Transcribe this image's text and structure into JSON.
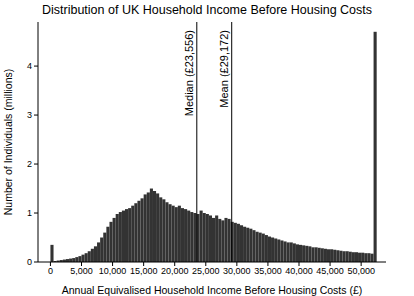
{
  "chart_data": {
    "type": "histogram",
    "title": "Distribution of UK Household Income Before Housing Costs",
    "x_label": "Annual Equivalised Household Income Before Housing Costs (£)",
    "y_label": "Number of Individuals (millions)",
    "color": "#333333",
    "grid": false,
    "xlim": [
      -2000,
      54000
    ],
    "ylim": [
      0,
      4.9
    ],
    "xticks": [
      0,
      {
        "value": 5000,
        "label": "5,000"
      },
      {
        "value": 10000,
        "label": "10,000"
      },
      {
        "value": 15000,
        "label": "15,000"
      },
      {
        "value": 20000,
        "label": "20,000"
      },
      {
        "value": 25000,
        "label": "25,000"
      },
      {
        "value": 30000,
        "label": "30,000"
      },
      {
        "value": 35000,
        "label": "35,000"
      },
      {
        "value": 40000,
        "label": "40,000"
      },
      {
        "value": 45000,
        "label": "45,000"
      },
      {
        "value": 50000,
        "label": "50,000"
      }
    ],
    "yticks": [
      0,
      1,
      2,
      3,
      4
    ],
    "bins": [
      0,
      500,
      1000,
      1500,
      2000,
      2500,
      3000,
      3500,
      4000,
      4500,
      5000,
      5500,
      6000,
      6500,
      7000,
      7500,
      8000,
      8500,
      9000,
      9500,
      10000,
      10500,
      11000,
      11500,
      12000,
      12500,
      13000,
      13500,
      14000,
      14500,
      15000,
      15500,
      16000,
      16500,
      17000,
      17500,
      18000,
      18500,
      19000,
      19500,
      20000,
      20500,
      21000,
      21500,
      22000,
      22500,
      23000,
      23500,
      24000,
      24500,
      25000,
      25500,
      26000,
      26500,
      27000,
      27500,
      28000,
      28500,
      29000,
      29500,
      30000,
      30500,
      31000,
      31500,
      32000,
      32500,
      33000,
      33500,
      34000,
      34500,
      35000,
      35500,
      36000,
      36500,
      37000,
      37500,
      38000,
      38500,
      39000,
      39500,
      40000,
      40500,
      41000,
      41500,
      42000,
      42500,
      43000,
      43500,
      44000,
      44500,
      45000,
      45500,
      46000,
      46500,
      47000,
      47500,
      48000,
      48500,
      49000,
      49500,
      50000,
      50500,
      51000,
      51500,
      52000,
      52500
    ],
    "values": [
      0.35,
      0.02,
      0.03,
      0.04,
      0.05,
      0.06,
      0.07,
      0.08,
      0.1,
      0.12,
      0.15,
      0.18,
      0.22,
      0.27,
      0.32,
      0.4,
      0.5,
      0.6,
      0.72,
      0.82,
      0.9,
      0.98,
      1.02,
      1.05,
      1.08,
      1.1,
      1.15,
      1.2,
      1.25,
      1.3,
      1.38,
      1.42,
      1.5,
      1.45,
      1.4,
      1.32,
      1.28,
      1.22,
      1.18,
      1.15,
      1.12,
      1.15,
      1.1,
      1.08,
      1.05,
      1.02,
      1.0,
      0.98,
      1.05,
      1.0,
      0.98,
      0.95,
      0.9,
      0.95,
      0.88,
      0.85,
      0.9,
      0.88,
      0.82,
      0.8,
      0.78,
      0.75,
      0.72,
      0.7,
      0.68,
      0.65,
      0.62,
      0.6,
      0.58,
      0.55,
      0.52,
      0.5,
      0.48,
      0.46,
      0.44,
      0.42,
      0.4,
      0.4,
      0.38,
      0.36,
      0.35,
      0.34,
      0.33,
      0.32,
      0.3,
      0.3,
      0.29,
      0.28,
      0.27,
      0.26,
      0.26,
      0.25,
      0.24,
      0.23,
      0.22,
      0.22,
      0.21,
      0.2,
      0.2,
      0.19,
      0.19,
      0.18,
      0.18,
      0.17,
      4.7
    ],
    "annotations": [
      {
        "x": 23556,
        "label": "Median (£23,556)"
      },
      {
        "x": 29172,
        "label": "Mean (£29,172)"
      }
    ]
  }
}
